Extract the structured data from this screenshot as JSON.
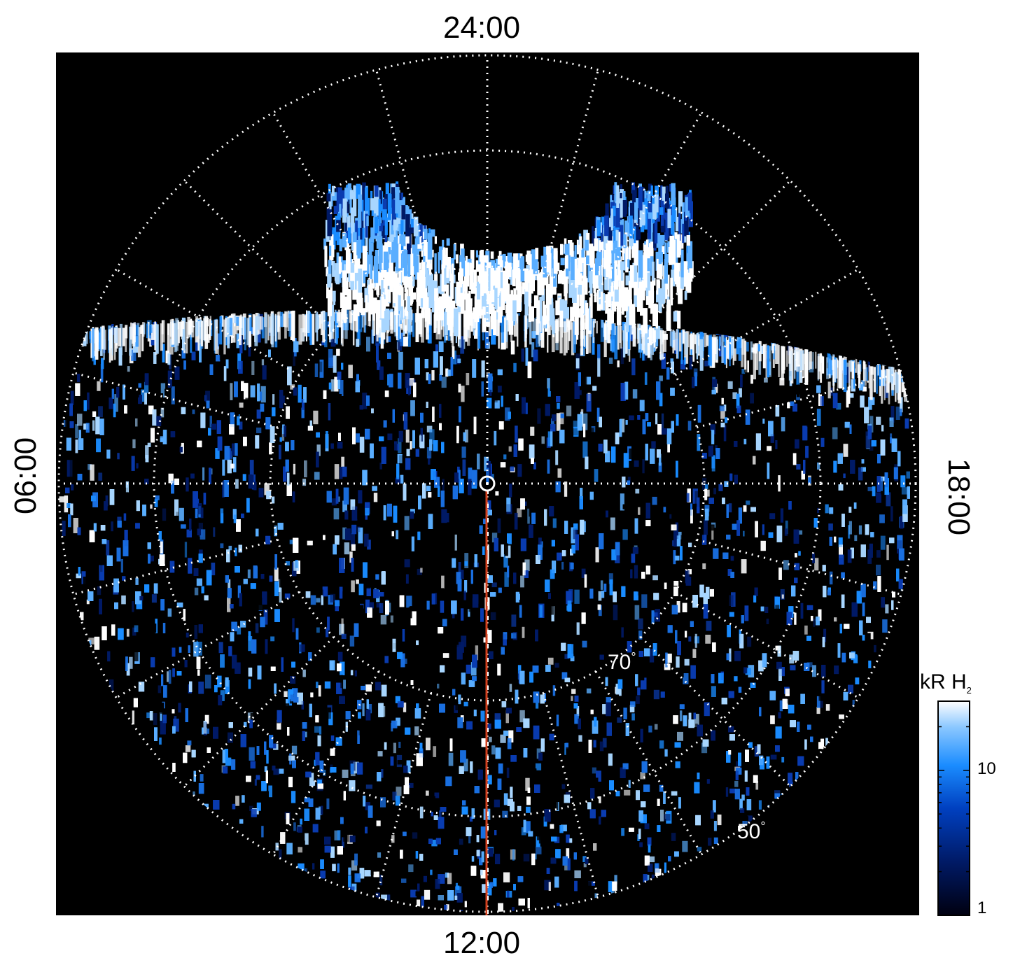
{
  "local_time_labels": {
    "top": "24:00",
    "bottom": "12:00",
    "left": "06:00",
    "right": "18:00"
  },
  "latitude_labels": [
    {
      "value": "70",
      "unit": "°"
    },
    {
      "value": "50",
      "unit": "°"
    }
  ],
  "colorbar": {
    "title_main": "kR H",
    "title_sub": "2",
    "ticks": [
      "10",
      "1"
    ],
    "colors": [
      "#000010",
      "#001a66",
      "#0040c0",
      "#1a8cff",
      "#8cc8ff",
      "#ffffff"
    ]
  },
  "colors": {
    "background": "#000000",
    "grid": "#ffffff",
    "meridian_line": "#d2401e",
    "aurora_bright": "#ffffff",
    "emission_blue": "#1a8cff"
  }
}
